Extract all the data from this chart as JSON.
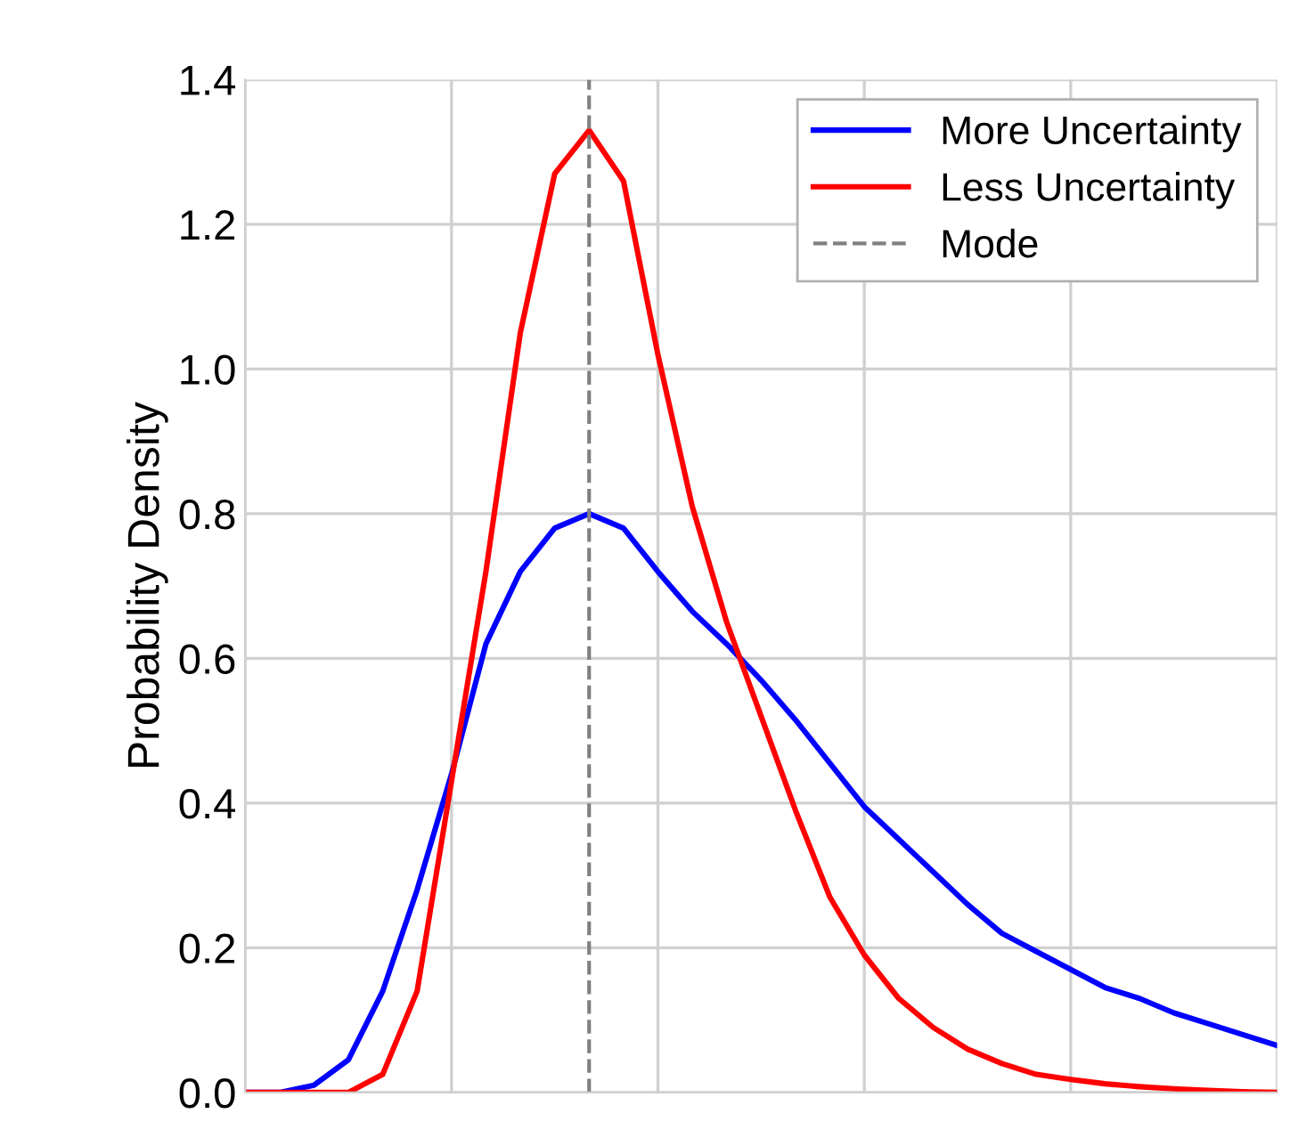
{
  "chart_data": {
    "type": "line",
    "ylabel": "Probability Density",
    "categories": [
      null,
      null,
      null,
      null,
      null,
      null,
      null,
      null,
      null,
      null,
      null,
      null,
      null,
      null,
      null,
      null,
      null,
      null,
      null,
      null,
      null,
      null,
      null,
      null,
      null,
      null,
      null,
      null,
      null,
      null,
      null
    ],
    "ylim": [
      0,
      1.4
    ],
    "yticks": [
      {
        "value": 0,
        "label": "0.0"
      },
      {
        "value": 0.2,
        "label": "0.2"
      },
      {
        "value": 0.4,
        "label": "0.4"
      },
      {
        "value": 0.6,
        "label": "0.6"
      },
      {
        "value": 0.8,
        "label": "0.8"
      },
      {
        "value": 1.0,
        "label": "1.0"
      },
      {
        "value": 1.2,
        "label": "1.2"
      },
      {
        "value": 1.4,
        "label": "1.4"
      }
    ],
    "grid": true,
    "legend": "top right",
    "line_style": "solid",
    "series": [
      {
        "name": "More Uncertainty",
        "color": "#0000ff",
        "values": [
          0,
          0,
          0.01,
          0.045,
          0.14,
          0.28,
          0.44,
          0.62,
          0.72,
          0.78,
          0.8,
          0.78,
          0.72,
          0.665,
          0.62,
          0.57,
          0.515,
          0.455,
          0.395,
          0.35,
          0.305,
          0.26,
          0.22,
          0.195,
          0.17,
          0.145,
          0.13,
          0.11,
          0.095,
          0.08,
          0.065
        ]
      },
      {
        "name": "Less Uncertainty",
        "color": "#ff0000",
        "values": [
          0,
          0,
          0,
          0,
          0.025,
          0.14,
          0.43,
          0.72,
          1.05,
          1.27,
          1.33,
          1.26,
          1.02,
          0.81,
          0.65,
          0.52,
          0.39,
          0.27,
          0.19,
          0.13,
          0.09,
          0.06,
          0.04,
          0.025,
          0.018,
          0.012,
          0.008,
          0.005,
          0.003,
          0.001,
          0
        ]
      }
    ],
    "ref_lines": [
      {
        "axis": "x",
        "label": "Mode",
        "color": "#808080",
        "line_style": "dashed"
      }
    ]
  }
}
